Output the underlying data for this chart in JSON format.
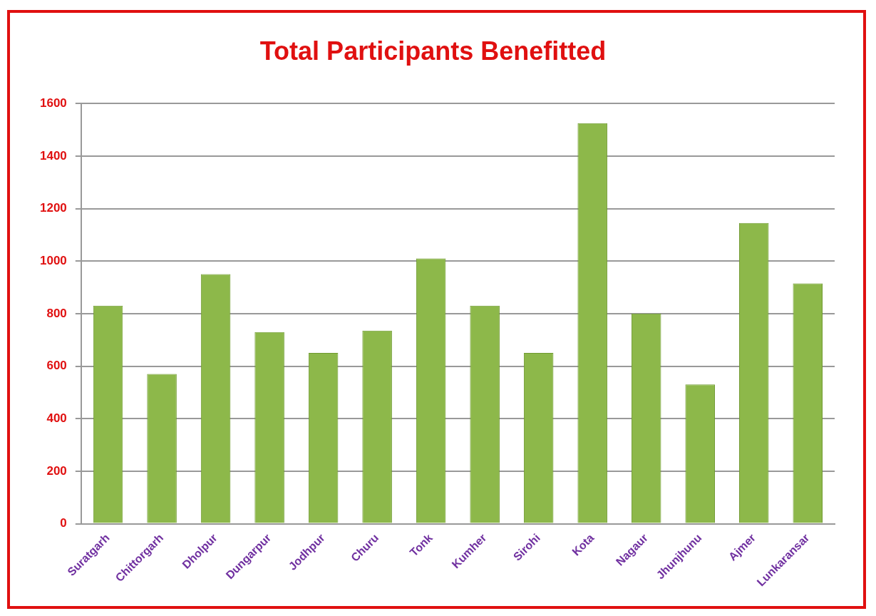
{
  "chart_data": {
    "type": "bar",
    "title": "Total Participants Benefitted",
    "categories": [
      "Suratgarh",
      "Chittorgarh",
      "Dholpur",
      "Dungarpur",
      "Jodhpur",
      "Churu",
      "Tonk",
      "Kumher",
      "Sirohi",
      "Kota",
      "Nagaur",
      "Jhunjhunu",
      "Ajmer",
      "Lunkaransar"
    ],
    "values": [
      830,
      570,
      950,
      730,
      650,
      735,
      1010,
      830,
      650,
      1525,
      800,
      530,
      1145,
      915
    ],
    "color": "#8db84a",
    "ylim": [
      0,
      1600
    ],
    "yticks": [
      0,
      200,
      400,
      600,
      800,
      1000,
      1200,
      1400,
      1600
    ],
    "grid": "y"
  }
}
